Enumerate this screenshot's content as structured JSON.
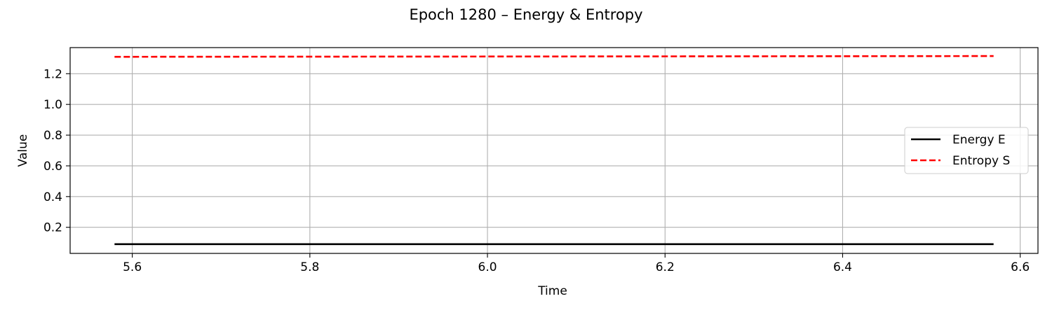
{
  "chart_data": {
    "type": "line",
    "title": "Epoch 1280 – Energy & Entropy",
    "xlabel": "Time",
    "ylabel": "Value",
    "xlim": [
      5.53,
      6.62
    ],
    "ylim": [
      0.03,
      1.37
    ],
    "xticks": [
      5.6,
      5.8,
      6.0,
      6.2,
      6.4,
      6.6
    ],
    "xtick_labels": [
      "5.6",
      "5.8",
      "6.0",
      "6.2",
      "6.4",
      "6.6"
    ],
    "yticks": [
      0.2,
      0.4,
      0.6,
      0.8,
      1.0,
      1.2
    ],
    "ytick_labels": [
      "0.2",
      "0.4",
      "0.6",
      "0.8",
      "1.0",
      "1.2"
    ],
    "grid": true,
    "legend_position": "center-right",
    "series": [
      {
        "name": "Energy E",
        "color": "#000000",
        "line_style": "solid",
        "x": [
          5.58,
          5.8,
          6.0,
          6.2,
          6.4,
          6.57
        ],
        "y": [
          0.09,
          0.09,
          0.09,
          0.09,
          0.09,
          0.09
        ]
      },
      {
        "name": "Entropy S",
        "color": "#ff0000",
        "line_style": "dashed",
        "x": [
          5.58,
          5.8,
          6.0,
          6.2,
          6.4,
          6.57
        ],
        "y": [
          1.31,
          1.311,
          1.312,
          1.313,
          1.314,
          1.315
        ]
      }
    ]
  }
}
